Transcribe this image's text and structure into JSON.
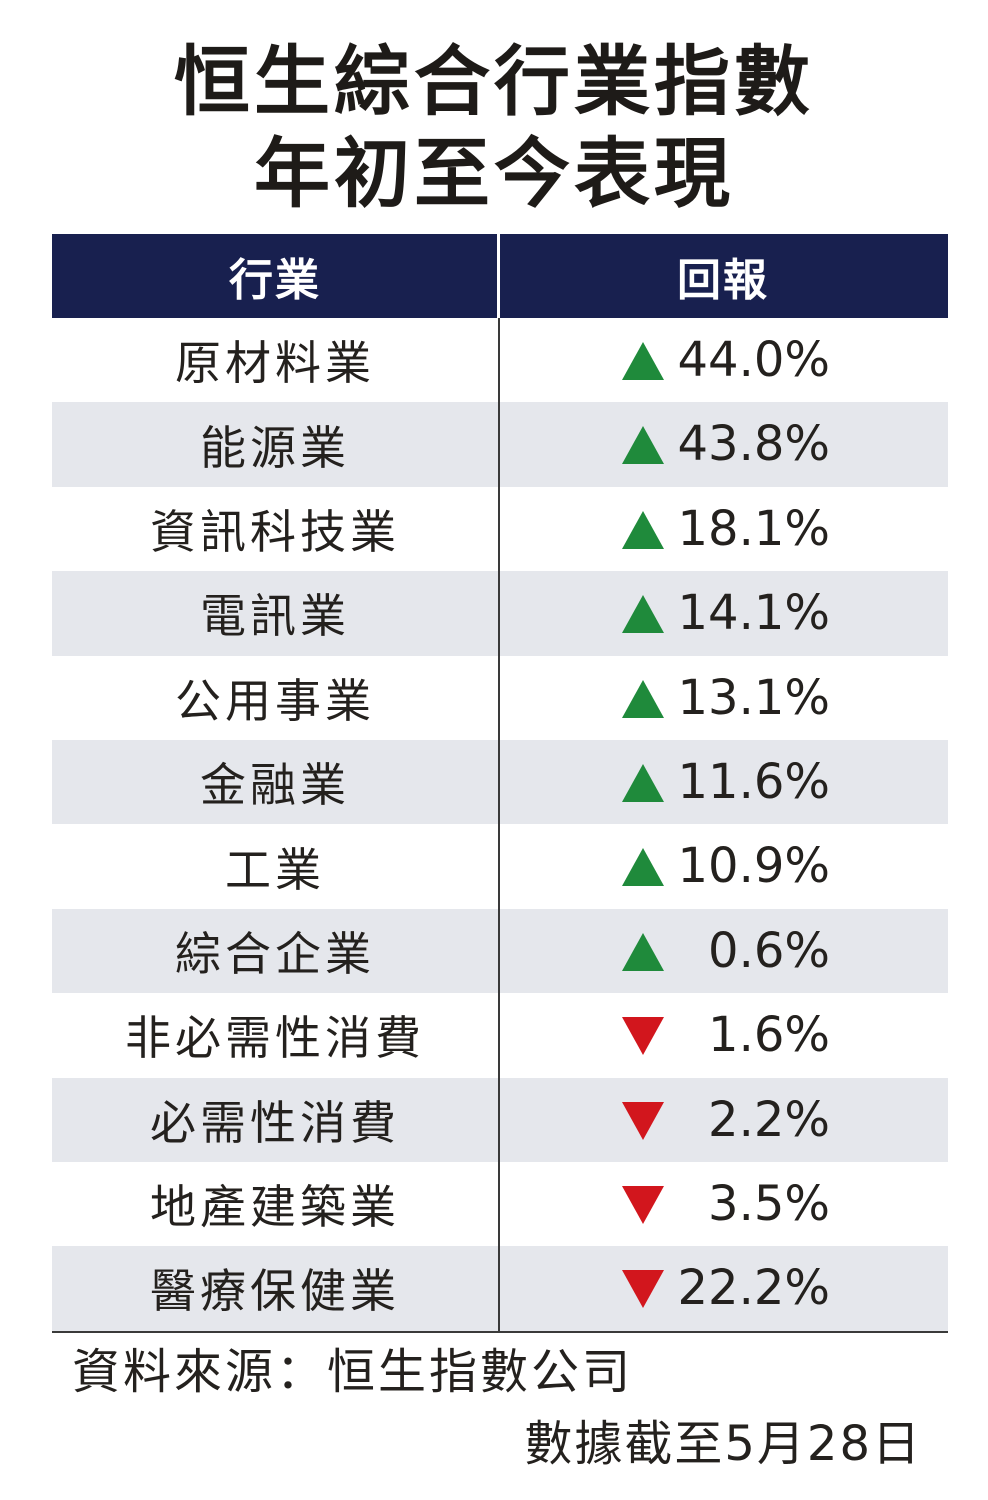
{
  "title_line1": "恒生綜合行業指數",
  "title_line2": "年初至今表現",
  "chart_data": {
    "type": "table",
    "columns": [
      "行業",
      "回報"
    ],
    "rows": [
      {
        "industry": "原材料業",
        "direction": "up",
        "value": 44.0,
        "display": "44.0%"
      },
      {
        "industry": "能源業",
        "direction": "up",
        "value": 43.8,
        "display": "43.8%"
      },
      {
        "industry": "資訊科技業",
        "direction": "up",
        "value": 18.1,
        "display": "18.1%"
      },
      {
        "industry": "電訊業",
        "direction": "up",
        "value": 14.1,
        "display": "14.1%"
      },
      {
        "industry": "公用事業",
        "direction": "up",
        "value": 13.1,
        "display": "13.1%"
      },
      {
        "industry": "金融業",
        "direction": "up",
        "value": 11.6,
        "display": "11.6%"
      },
      {
        "industry": "工業",
        "direction": "up",
        "value": 10.9,
        "display": "10.9%"
      },
      {
        "industry": "綜合企業",
        "direction": "up",
        "value": 0.6,
        "display": "0.6%"
      },
      {
        "industry": "非必需性消費",
        "direction": "down",
        "value": -1.6,
        "display": "1.6%"
      },
      {
        "industry": "必需性消費",
        "direction": "down",
        "value": -2.2,
        "display": "2.2%"
      },
      {
        "industry": "地產建築業",
        "direction": "down",
        "value": -3.5,
        "display": "3.5%"
      },
      {
        "industry": "醫療保健業",
        "direction": "down",
        "value": -22.2,
        "display": "22.2%"
      }
    ]
  },
  "colors": {
    "header_bg": "#18204f",
    "up_arrow": "#1f8a3b",
    "down_arrow": "#d2161d",
    "row_alt": "#e5e7ec"
  },
  "footer": {
    "source": "資料來源：恒生指數公司",
    "as_of": "數據截至5月28日"
  }
}
